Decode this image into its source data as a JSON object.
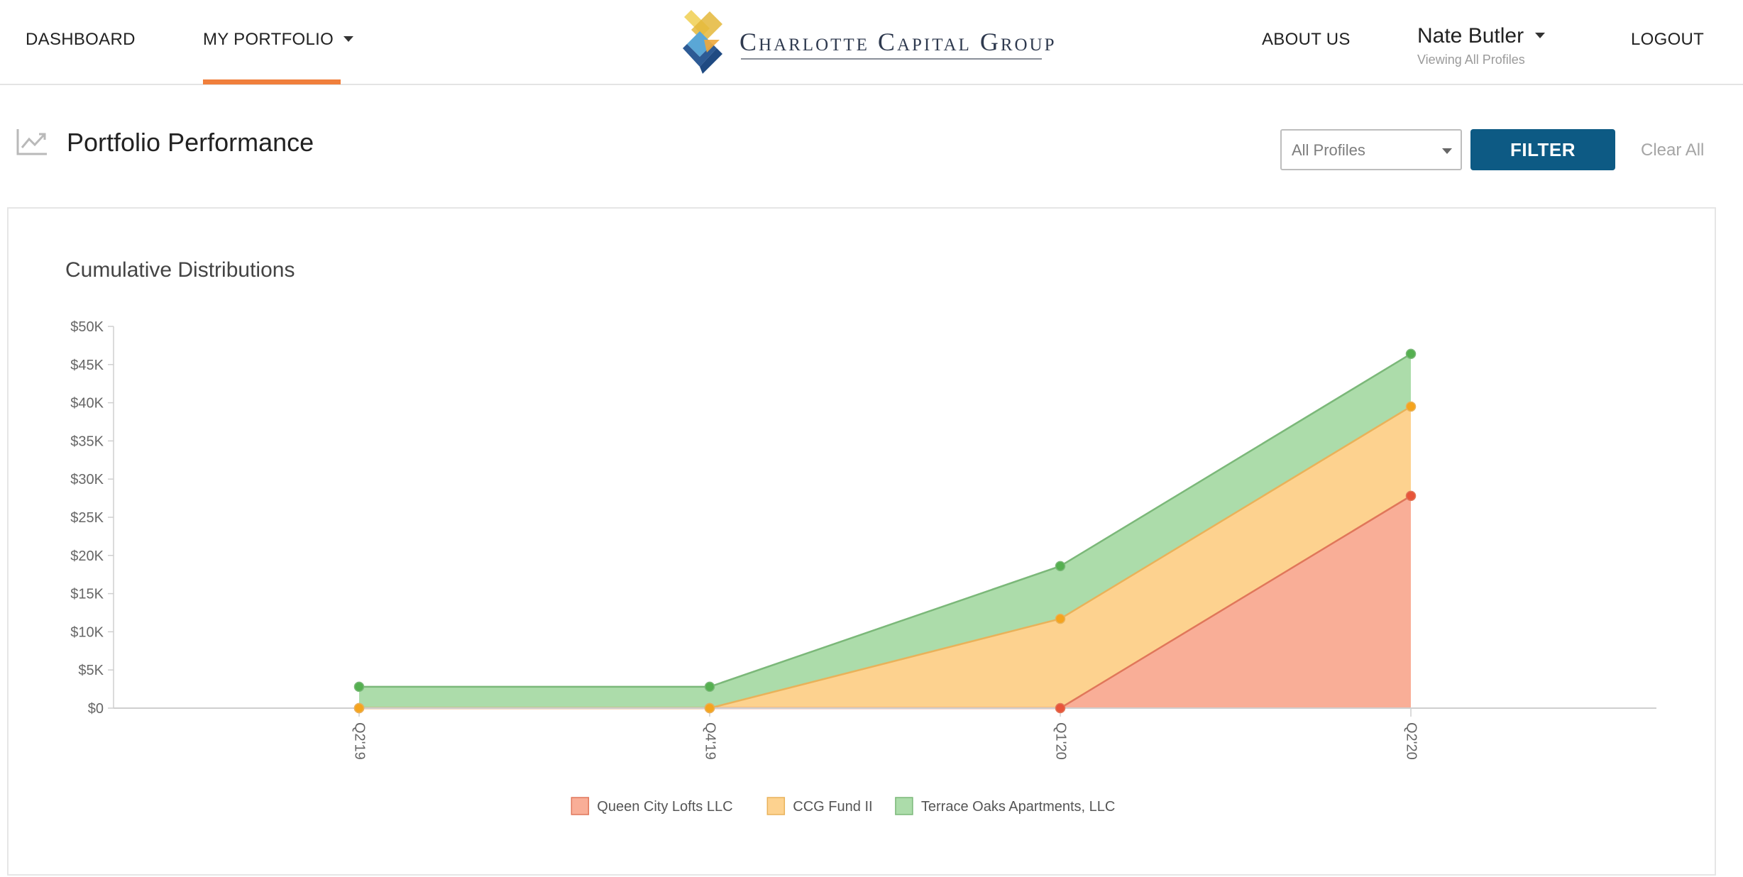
{
  "nav": {
    "dashboard": "DASHBOARD",
    "my_portfolio": "MY PORTFOLIO",
    "about_us": "ABOUT US",
    "logout": "LOGOUT"
  },
  "brand": {
    "name": "Charlotte Capital Group",
    "accent_color": "#f07f3c",
    "primary_color": "#0d5a84"
  },
  "user": {
    "name": "Nate Butler",
    "subtitle": "Viewing All Profiles"
  },
  "page": {
    "title": "Portfolio Performance",
    "icon": "trending-chart-icon"
  },
  "filters": {
    "profile_selected": "All Profiles",
    "filter_label": "FILTER",
    "clear_label": "Clear All"
  },
  "chart_data": {
    "type": "area",
    "stacked": true,
    "title": "Cumulative Distributions",
    "categories": [
      "Q2'19",
      "Q4'19",
      "Q1'20",
      "Q2'20"
    ],
    "y_ticks": [
      "$0",
      "$5K",
      "$10K",
      "$15K",
      "$20K",
      "$25K",
      "$30K",
      "$35K",
      "$40K",
      "$45K",
      "$50K"
    ],
    "ylim": [
      0,
      50000
    ],
    "legend_position": "bottom-center",
    "series": [
      {
        "name": "Queen City Lofts LLC",
        "color": "#f9ae97",
        "line_color": "#e0775a",
        "marker_color": "#e8553a",
        "values": [
          0,
          0,
          0,
          27800
        ]
      },
      {
        "name": "CCG Fund II",
        "color": "#fdd28f",
        "line_color": "#e9b25a",
        "marker_color": "#f5a41e",
        "values": [
          0,
          0,
          11700,
          11700
        ]
      },
      {
        "name": "Terrace Oaks Apartments, LLC",
        "color": "#acdcaa",
        "line_color": "#7bb879",
        "marker_color": "#55b050",
        "values": [
          2800,
          2800,
          6900,
          6900
        ]
      }
    ]
  }
}
